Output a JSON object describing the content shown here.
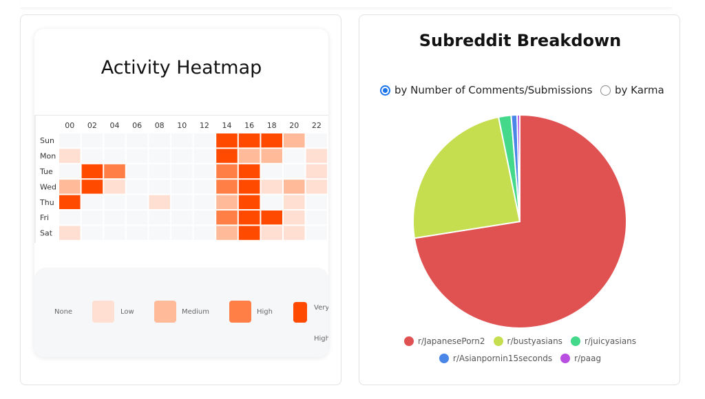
{
  "heatmap": {
    "title": "Activity Heatmap",
    "hour_labels": [
      "00",
      "02",
      "04",
      "06",
      "08",
      "10",
      "12",
      "14",
      "16",
      "18",
      "20",
      "22"
    ],
    "legend": [
      {
        "label": "None"
      },
      {
        "label": "Low",
        "color": "#ffdfd2"
      },
      {
        "label": "Medium",
        "color": "#ffbb99"
      },
      {
        "label": "High",
        "color": "#ff7f46"
      },
      {
        "label": "Very High",
        "color": "#ff4a00"
      }
    ],
    "levels": {
      "0": "#f7f8fa",
      "1": "#ffdfd2",
      "2": "#ffbb99",
      "3": "#ff7f46",
      "4": "#ff4a00"
    }
  },
  "chart_data": [
    {
      "type": "heatmap",
      "title": "Activity Heatmap",
      "x_label_ticks": [
        "00",
        "02",
        "04",
        "06",
        "08",
        "10",
        "12",
        "14",
        "16",
        "18",
        "20",
        "22"
      ],
      "x_slots": 12,
      "y": [
        "Sun",
        "Mon",
        "Tue",
        "Wed",
        "Thu",
        "Fri",
        "Sat"
      ],
      "levels_legend": [
        "None",
        "Low",
        "Medium",
        "High",
        "Very High"
      ],
      "values": [
        [
          0,
          0,
          0,
          0,
          0,
          0,
          0,
          4,
          4,
          4,
          2,
          0
        ],
        [
          1,
          0,
          0,
          0,
          0,
          0,
          0,
          4,
          2,
          2,
          0,
          1
        ],
        [
          0,
          4,
          3,
          0,
          0,
          0,
          0,
          3,
          4,
          0,
          0,
          1
        ],
        [
          2,
          4,
          1,
          0,
          0,
          0,
          0,
          3,
          4,
          1,
          2,
          1
        ],
        [
          4,
          0,
          0,
          0,
          1,
          0,
          0,
          2,
          4,
          0,
          1,
          0
        ],
        [
          0,
          0,
          0,
          0,
          0,
          0,
          0,
          3,
          4,
          4,
          1,
          0
        ],
        [
          1,
          0,
          0,
          0,
          0,
          0,
          0,
          2,
          4,
          1,
          1,
          0
        ]
      ]
    },
    {
      "type": "pie",
      "title": "Subreddit Breakdown",
      "labels": [
        "r/JapanesePorn2",
        "r/bustyasians",
        "r/juicyasians",
        "r/Asianpornin15seconds",
        "r/paag"
      ],
      "values": [
        72.5,
        24.3,
        1.9,
        0.9,
        0.4
      ],
      "colors": [
        "#e05151",
        "#c4de4f",
        "#44d88a",
        "#4a86e8",
        "#b94fe0"
      ]
    }
  ],
  "pie_options": {
    "option_comments": "by Number of Comments/Submissions",
    "option_karma": "by Karma"
  }
}
